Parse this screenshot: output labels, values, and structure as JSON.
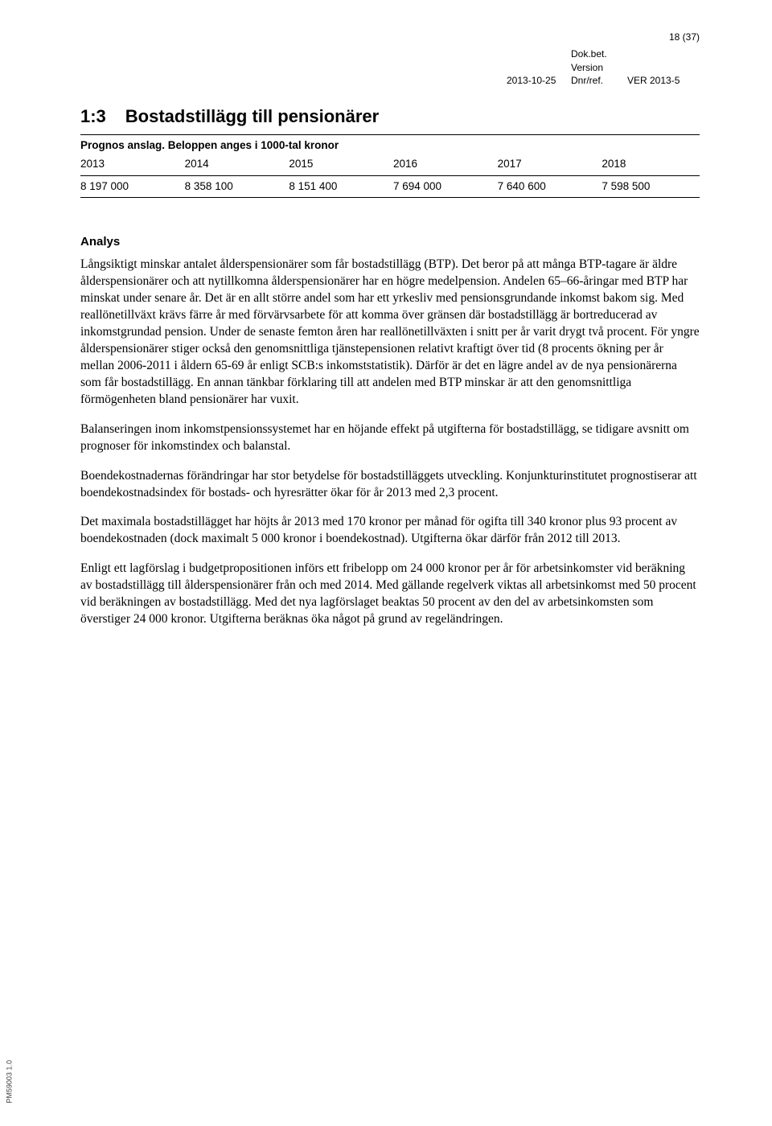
{
  "page_number": "18 (37)",
  "header": {
    "date": "2013-10-25",
    "dokbet": "Dok.bet.",
    "version": "Version",
    "dnrref": "Dnr/ref.",
    "vernum": "VER 2013-5"
  },
  "section": {
    "number": "1:3",
    "title": "Bostadstillägg till pensionärer"
  },
  "table": {
    "type": "table",
    "caption": "Prognos anslag. Beloppen anges i 1000-tal kronor",
    "columns": [
      "2013",
      "2014",
      "2015",
      "2016",
      "2017",
      "2018"
    ],
    "rows": [
      [
        "8 197 000",
        "8 358 100",
        "8 151 400",
        "7 694 000",
        "7 640 600",
        "7 598 500"
      ]
    ]
  },
  "analys_heading": "Analys",
  "paragraphs": [
    "Långsiktigt minskar antalet ålderspensionärer som får bostadstillägg (BTP). Det beror på att många BTP-tagare är äldre ålderspensionärer och att nytillkomna ålderspensionärer har en högre medelpension. Andelen 65–66-åringar med BTP har minskat under senare år. Det är en allt större andel som har ett yrkesliv med pensionsgrundande inkomst bakom sig. Med reallönetillväxt krävs färre år med förvärvsarbete för att komma över gränsen där bostadstillägg är bortreducerad av inkomstgrundad pension. Under de senaste femton åren har reallönetillväxten i snitt per år varit drygt två procent. För yngre ålderspensionärer stiger också den genomsnittliga tjänstepensionen relativt kraftigt över tid (8 procents ökning per år mellan 2006-2011 i åldern 65-69 år enligt SCB:s inkomststatistik). Därför är det en lägre andel av de nya pensionärerna som får bostadstillägg. En annan tänkbar förklaring till att andelen med BTP minskar är att den genomsnittliga förmögenheten bland pensionärer har vuxit.",
    "Balanseringen inom inkomstpensionssystemet har en höjande effekt på utgifterna för bostadstillägg, se tidigare avsnitt om prognoser för inkomstindex och balanstal.",
    "Boendekostnadernas förändringar har stor betydelse för bostadstilläggets utveckling. Konjunkturinstitutet prognostiserar att boendekostnadsindex för bostads- och hyresrätter ökar för år 2013 med 2,3 procent.",
    "Det maximala bostadstillägget har höjts år 2013 med 170 kronor per månad för ogifta till 340 kronor plus 93 procent av boendekostnaden (dock maximalt 5 000 kronor i boendekostnad). Utgifterna ökar därför från 2012 till 2013.",
    "Enligt ett lagförslag i budgetpropositionen införs ett fribelopp om 24 000 kronor per år för arbetsinkomster vid beräkning av bostadstillägg till ålderspensionärer från och med 2014. Med gällande regelverk viktas all arbetsinkomst med 50 procent vid beräkningen av bostadstillägg. Med det nya lagförslaget beaktas 50 procent av den del av arbetsinkomsten som överstiger 24 000 kronor. Utgifterna beräknas öka något på grund av regeländringen."
  ],
  "side_label": "PM59003 1.0"
}
